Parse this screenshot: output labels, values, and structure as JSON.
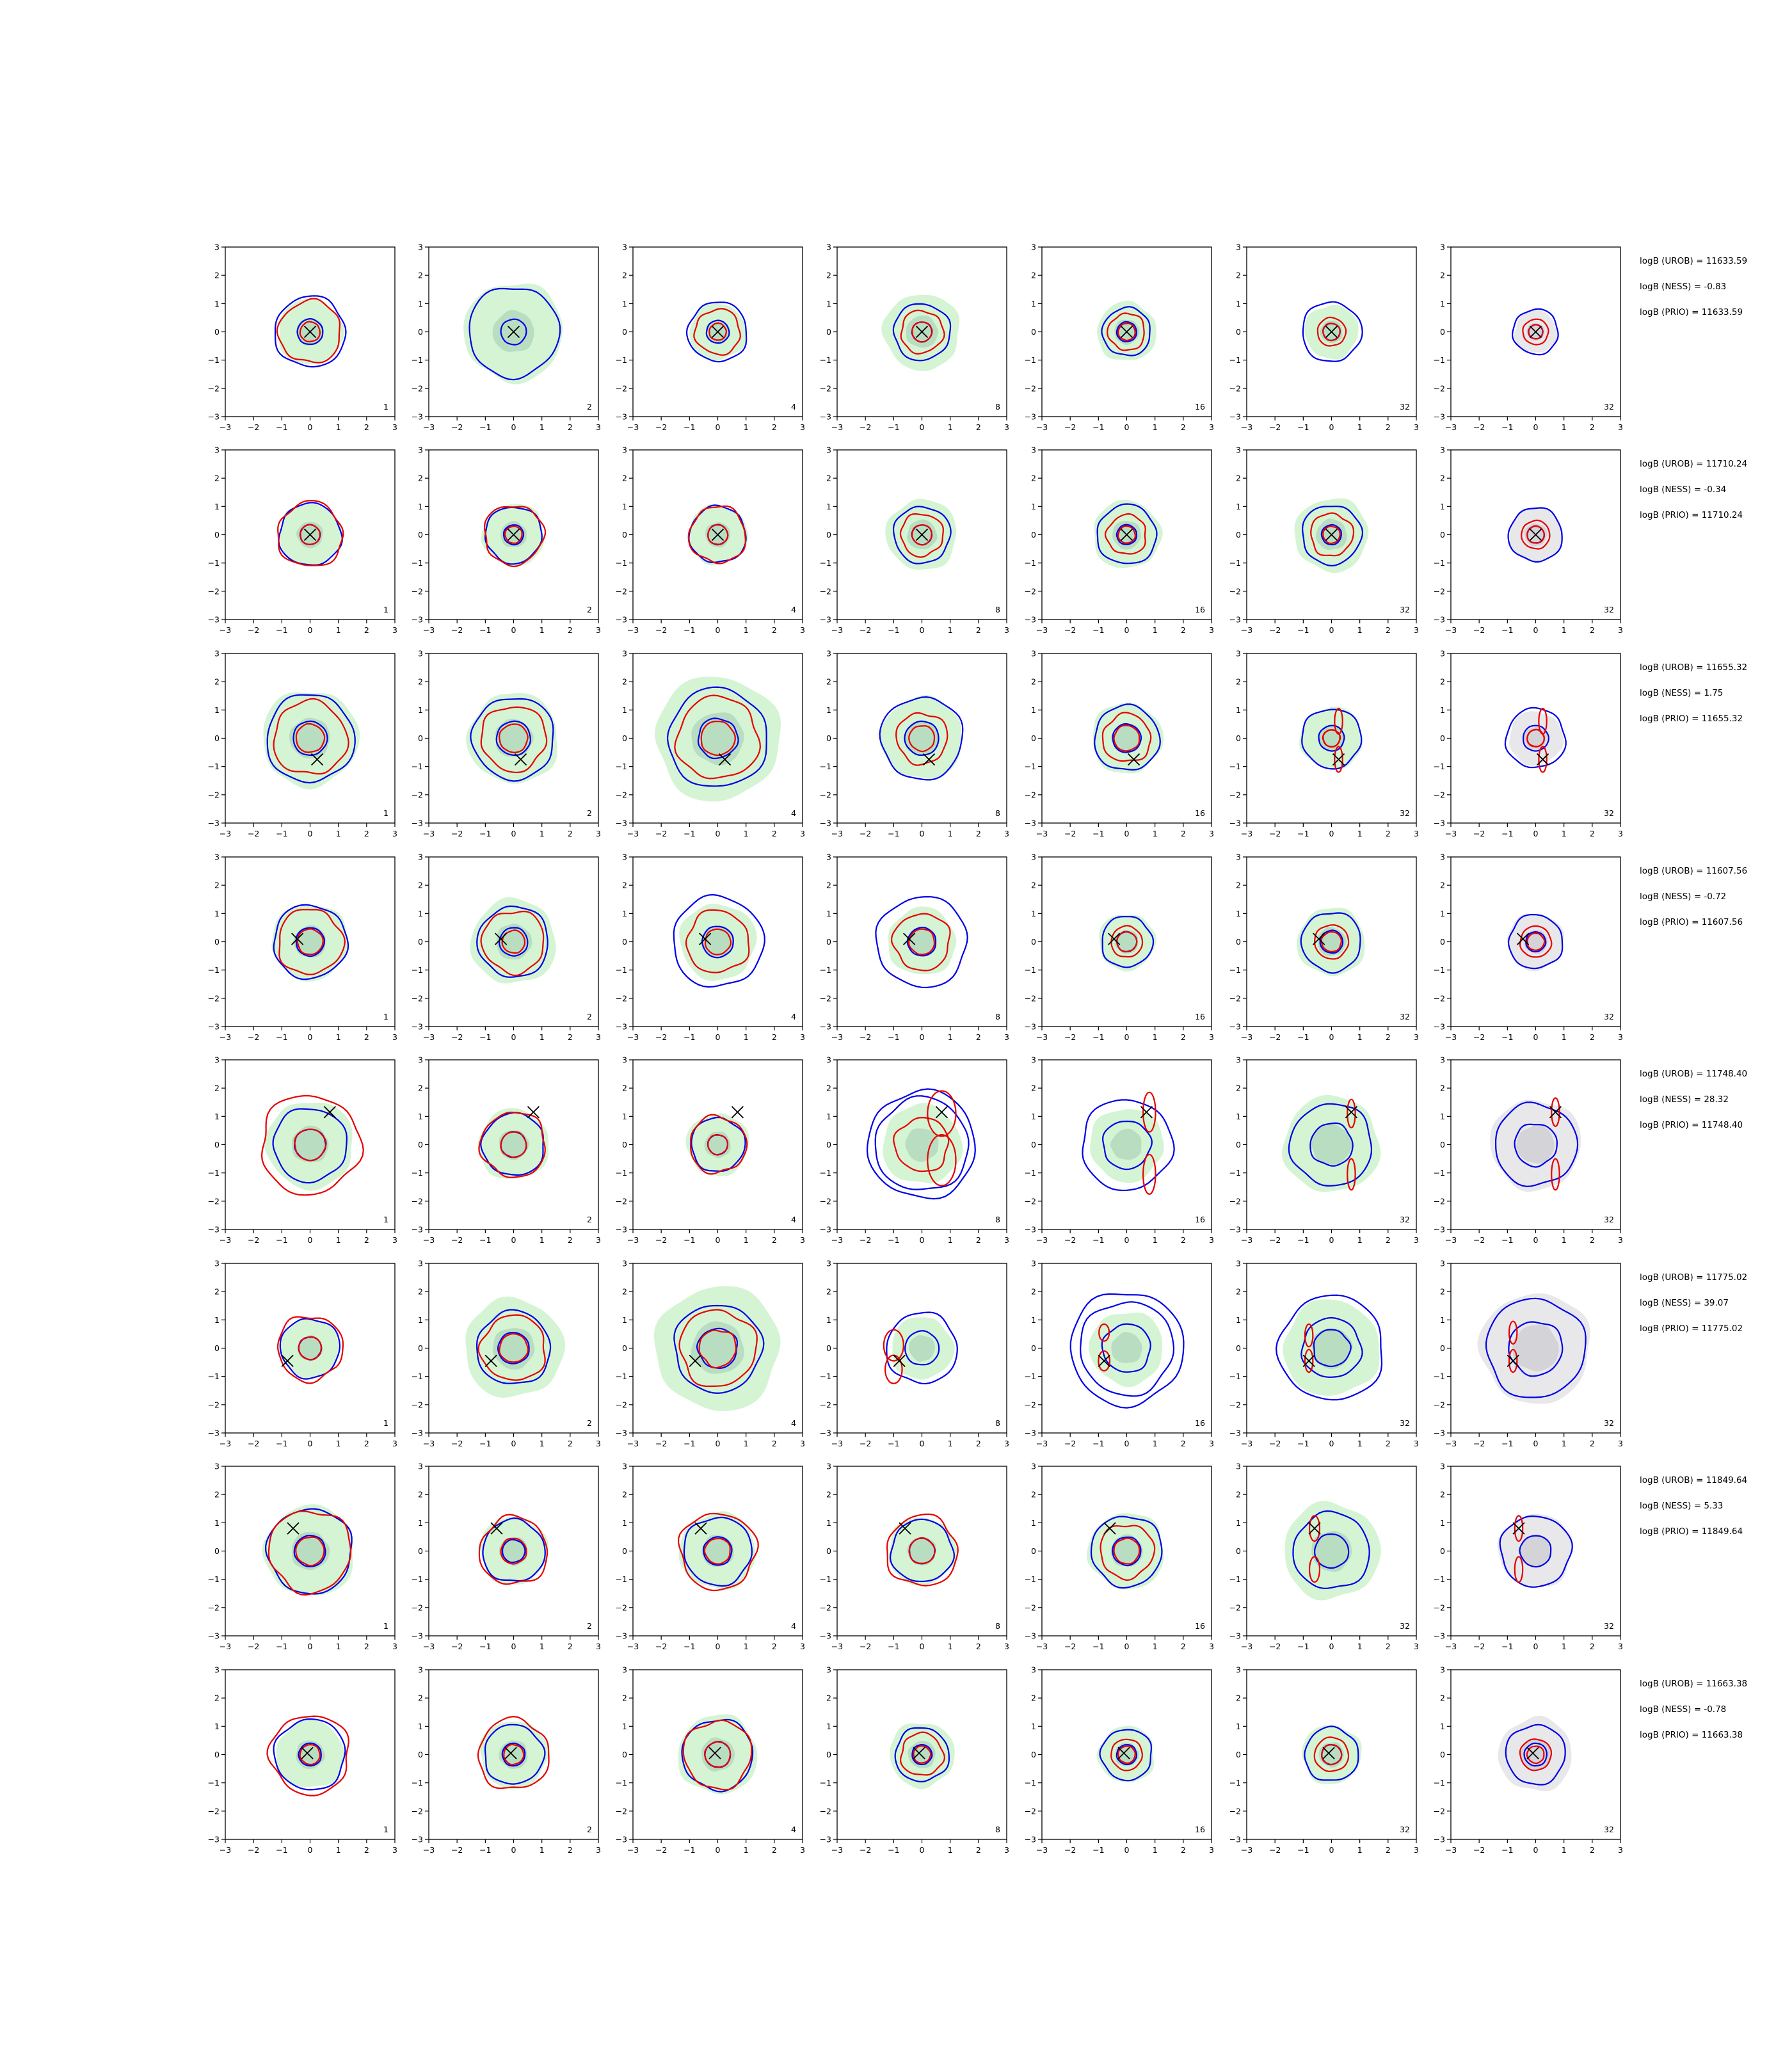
{
  "colors": {
    "green_fill_light": "#d4f4d4",
    "green_fill_dark": "#b8ddc0",
    "gray_fill_light": "#e8e8ea",
    "gray_fill_dark": "#d4d4d8",
    "blue_contour": "#0000e6",
    "red_contour": "#e60000",
    "marker": "#000000"
  },
  "chart_data": {
    "type": "contour-grid",
    "grid": {
      "rows": 8,
      "cols": 7
    },
    "axes": {
      "xlim": [
        -3,
        3
      ],
      "ylim": [
        -3,
        3
      ],
      "xticks": [
        -3,
        -2,
        -1,
        0,
        1,
        2,
        3
      ],
      "yticks": [
        -3,
        -2,
        -1,
        0,
        1,
        2,
        3
      ],
      "tick_labels": [
        "−3",
        "−2",
        "−1",
        "0",
        "1",
        "2",
        "3"
      ]
    },
    "column_labels": [
      "1",
      "2",
      "4",
      "8",
      "16",
      "32",
      "32"
    ],
    "last_column_fill": "gray",
    "rows": [
      {
        "marker": [
          0.0,
          0.0
        ],
        "annotations": [
          "logB (UROB) = 11633.59",
          "logB (NESS) = -0.83",
          "logB (PRIO) = 11633.59"
        ],
        "panels": [
          {
            "green": 1.15,
            "blue": [
              1.25,
              0.45
            ],
            "red": [
              1.1,
              0.35
            ]
          },
          {
            "green": 1.75,
            "blue": [
              1.6,
              0.45
            ],
            "red": []
          },
          {
            "green": 1.0,
            "blue": [
              1.05,
              0.4
            ],
            "red": [
              0.8,
              0.3
            ]
          },
          {
            "green": 1.35,
            "blue": [
              1.0,
              0.35
            ],
            "red": [
              0.75,
              0.35
            ]
          },
          {
            "green": 1.05,
            "blue": [
              0.85,
              0.35
            ],
            "red": [
              0.65,
              0.3
            ]
          },
          {
            "green": 0.95,
            "blue": [
              1.05,
              0.3
            ],
            "red": [
              0.5,
              0.3
            ]
          },
          {
            "green": 0.75,
            "blue": [
              0.8,
              0.25
            ],
            "red": [
              0.45,
              0.25
            ]
          }
        ]
      },
      {
        "marker": [
          0.0,
          0.0
        ],
        "annotations": [
          "logB (UROB) = 11710.24",
          "logB (NESS) = -0.34",
          "logB (PRIO) = 11710.24"
        ],
        "panels": [
          {
            "green": 1.1,
            "blue": [
              1.1,
              0.35
            ],
            "red": [
              1.15,
              0.35
            ]
          },
          {
            "green": 1.1,
            "blue": [
              1.0,
              0.35
            ],
            "red": [
              1.05,
              0.3
            ]
          },
          {
            "green": 1.05,
            "blue": [
              1.0,
              0.35
            ],
            "red": [
              1.0,
              0.35
            ]
          },
          {
            "green": 1.25,
            "blue": [
              1.0,
              0.35
            ],
            "red": [
              0.75,
              0.35
            ]
          },
          {
            "green": 1.2,
            "blue": [
              1.05,
              0.35
            ],
            "red": [
              0.7,
              0.3
            ]
          },
          {
            "green": 1.3,
            "blue": [
              1.05,
              0.35
            ],
            "red": [
              0.75,
              0.3
            ]
          },
          {
            "green": 0.95,
            "blue": [
              0.95,
              0.3
            ],
            "red": [
              0.5,
              0.3
            ]
          }
        ]
      },
      {
        "marker": [
          0.25,
          -0.75
        ],
        "annotations": [
          "logB (UROB) = 11655.32",
          "logB (NESS) = 1.75",
          "logB (PRIO) = 11655.32"
        ],
        "panels": [
          {
            "green": 1.7,
            "blue": [
              1.55,
              0.6
            ],
            "red": [
              1.3,
              0.5
            ]
          },
          {
            "green": 1.6,
            "blue": [
              1.45,
              0.6
            ],
            "red": [
              1.15,
              0.5
            ]
          },
          {
            "green": 2.2,
            "blue": [
              1.75,
              0.7
            ],
            "red": [
              1.45,
              0.6
            ]
          },
          {
            "green": 1.45,
            "blue": [
              1.45,
              0.6
            ],
            "red": [
              0.9,
              0.45
            ]
          },
          {
            "green": 1.25,
            "blue": [
              1.15,
              0.5
            ],
            "red": [
              0.85,
              0.45
            ]
          },
          {
            "green": 1.1,
            "blue": [
              1.05,
              0.45
            ],
            "red": [
              0.3,
              0.3
            ],
            "red_ellipses": [
              [
                0.25,
                0.6,
                0.14,
                0.45
              ],
              [
                0.25,
                -0.75,
                0.14,
                0.45
              ]
            ]
          },
          {
            "green": 0.95,
            "blue": [
              1.05,
              0.45
            ],
            "red": [
              0.3,
              0.3
            ],
            "red_ellipses": [
              [
                0.25,
                0.6,
                0.14,
                0.45
              ],
              [
                0.25,
                -0.75,
                0.14,
                0.45
              ]
            ]
          }
        ]
      },
      {
        "marker": [
          -0.45,
          0.1
        ],
        "annotations": [
          "logB (UROB) = 11607.56",
          "logB (NESS) = -0.72",
          "logB (PRIO) = 11607.56"
        ],
        "panels": [
          {
            "green": 1.35,
            "blue": [
              1.3,
              0.5
            ],
            "red": [
              1.15,
              0.45
            ]
          },
          {
            "green": 1.5,
            "blue": [
              1.25,
              0.5
            ],
            "red": [
              1.1,
              0.4
            ]
          },
          {
            "green": 1.35,
            "blue": [
              1.6,
              0.55
            ],
            "red": [
              1.1,
              0.45
            ]
          },
          {
            "green": 1.2,
            "blue": [
              1.6,
              0.5
            ],
            "red": [
              1.0,
              0.45
            ]
          },
          {
            "green": 1.0,
            "blue": [
              0.9,
              0.35
            ],
            "red": [
              0.55,
              0.35
            ]
          },
          {
            "green": 1.2,
            "blue": [
              1.05,
              0.4
            ],
            "red": [
              0.6,
              0.35
            ]
          },
          {
            "green": 1.0,
            "blue": [
              0.95,
              0.35
            ],
            "red": [
              0.55,
              0.3
            ]
          }
        ]
      },
      {
        "marker": [
          0.7,
          1.15
        ],
        "annotations": [
          "logB (UROB) = 11748.40",
          "logB (NESS) = 28.32",
          "logB (PRIO) = 11748.40"
        ],
        "panels": [
          {
            "green": 1.55,
            "blue": [
              1.3,
              0.55
            ],
            "red": [
              1.75,
              0.55
            ]
          },
          {
            "green": 1.25,
            "blue": [
              1.1,
              0.45
            ],
            "red": [
              1.15,
              0.45
            ]
          },
          {
            "green": 1.1,
            "blue": [
              0.95,
              0.35
            ],
            "red": [
              1.0,
              0.35
            ]
          },
          {
            "green": 1.4,
            "blue": [
              1.9,
              1.65
            ],
            "red": [
              0.95
            ],
            "red_ellipses": [
              [
                0.7,
                1.1,
                0.5,
                0.8
              ],
              [
                0.7,
                -0.55,
                0.5,
                0.9
              ]
            ]
          },
          {
            "green": 1.3,
            "blue": [
              1.6,
              0.85
            ],
            "red": [],
            "red_ellipses": [
              [
                0.8,
                1.15,
                0.22,
                0.7
              ],
              [
                0.8,
                -1.05,
                0.22,
                0.7
              ]
            ]
          },
          {
            "green": 1.7,
            "blue": [
              1.45,
              0.75
            ],
            "red": [],
            "red_ellipses": [
              [
                0.7,
                1.1,
                0.14,
                0.5
              ],
              [
                0.7,
                -1.05,
                0.14,
                0.55
              ]
            ]
          },
          {
            "green": 1.6,
            "blue": [
              1.45,
              0.75
            ],
            "red": [],
            "red_ellipses": [
              [
                0.7,
                1.15,
                0.14,
                0.5
              ],
              [
                0.7,
                -1.05,
                0.14,
                0.55
              ]
            ]
          }
        ]
      },
      {
        "marker": [
          -0.8,
          -0.45
        ],
        "annotations": [
          "logB (UROB) = 11775.02",
          "logB (NESS) = 39.07",
          "logB (PRIO) = 11775.02"
        ],
        "panels": [
          {
            "green": 1.05,
            "blue": [
              1.05,
              0.4
            ],
            "red": [
              1.15,
              0.4
            ]
          },
          {
            "green": 1.75,
            "blue": [
              1.3,
              0.55
            ],
            "red": [
              1.15,
              0.5
            ]
          },
          {
            "green": 2.2,
            "blue": [
              1.55,
              0.7
            ],
            "red": [
              1.35,
              0.65
            ]
          },
          {
            "green": 1.1,
            "blue": [
              1.25,
              0.6
            ],
            "red": [],
            "red_ellipses": [
              [
                -1.0,
                0.1,
                0.35,
                0.55
              ],
              [
                -1.0,
                -0.75,
                0.3,
                0.5
              ]
            ]
          },
          {
            "green": 1.3,
            "blue": [
              2.0,
              1.65,
              0.85
            ],
            "red": [],
            "red_ellipses": [
              [
                -0.8,
                0.55,
                0.18,
                0.3
              ],
              [
                -0.8,
                -0.45,
                0.2,
                0.35
              ]
            ]
          },
          {
            "green": 1.7,
            "blue": [
              1.85,
              1.05,
              0.65
            ],
            "red": [],
            "red_ellipses": [
              [
                -0.8,
                0.45,
                0.14,
                0.4
              ],
              [
                -0.8,
                -0.45,
                0.14,
                0.4
              ]
            ]
          },
          {
            "green": 1.95,
            "blue": [
              1.75,
              0.95
            ],
            "red": [],
            "red_ellipses": [
              [
                -0.8,
                0.55,
                0.14,
                0.4
              ],
              [
                -0.8,
                -0.45,
                0.14,
                0.4
              ]
            ]
          }
        ]
      },
      {
        "marker": [
          -0.6,
          0.8
        ],
        "annotations": [
          "logB (UROB) = 11849.64",
          "logB (NESS) = 5.33",
          "logB (PRIO) = 11849.64"
        ],
        "panels": [
          {
            "green": 1.6,
            "blue": [
              1.5,
              0.55
            ],
            "red": [
              1.45,
              0.5
            ]
          },
          {
            "green": 1.2,
            "blue": [
              1.1,
              0.4
            ],
            "red": [
              1.2,
              0.45
            ]
          },
          {
            "green": 1.35,
            "blue": [
              1.2,
              0.5
            ],
            "red": [
              1.35,
              0.45
            ]
          },
          {
            "green": 1.2,
            "blue": [
              1.1,
              0.45
            ],
            "red": [
              1.25,
              0.45
            ]
          },
          {
            "green": 1.35,
            "blue": [
              1.25,
              0.5
            ],
            "red": [
              0.95,
              0.45
            ]
          },
          {
            "green": 1.7,
            "blue": [
              1.35,
              0.6
            ],
            "red": [],
            "red_ellipses": [
              [
                -0.6,
                0.8,
                0.18,
                0.45
              ],
              [
                -0.6,
                -0.65,
                0.18,
                0.45
              ]
            ]
          },
          {
            "green": 1.3,
            "blue": [
              1.25,
              0.55
            ],
            "red": [],
            "red_ellipses": [
              [
                -0.6,
                0.8,
                0.14,
                0.45
              ],
              [
                -0.6,
                -0.65,
                0.14,
                0.45
              ]
            ]
          }
        ]
      },
      {
        "marker": [
          -0.1,
          0.05
        ],
        "annotations": [
          "logB (UROB) = 11663.38",
          "logB (NESS) = -0.78",
          "logB (PRIO) = 11663.38"
        ],
        "panels": [
          {
            "green": 1.2,
            "blue": [
              1.25,
              0.4
            ],
            "red": [
              1.4,
              0.35
            ]
          },
          {
            "green": 1.2,
            "blue": [
              1.05,
              0.4
            ],
            "red": [
              1.25,
              0.35
            ]
          },
          {
            "green": 1.4,
            "blue": [
              1.25,
              0.45
            ],
            "red": [
              1.2,
              0.45
            ]
          },
          {
            "green": 1.15,
            "blue": [
              0.95,
              0.35
            ],
            "red": [
              0.75,
              0.3
            ]
          },
          {
            "green": 1.0,
            "blue": [
              0.9,
              0.35
            ],
            "red": [
              0.55,
              0.3
            ]
          },
          {
            "green": 1.05,
            "blue": [
              0.95,
              0.35
            ],
            "red": [
              0.6,
              0.35
            ]
          },
          {
            "green": 1.3,
            "blue": [
              1.05,
              0.4
            ],
            "red": [
              0.55,
              0.3
            ]
          }
        ]
      }
    ]
  }
}
